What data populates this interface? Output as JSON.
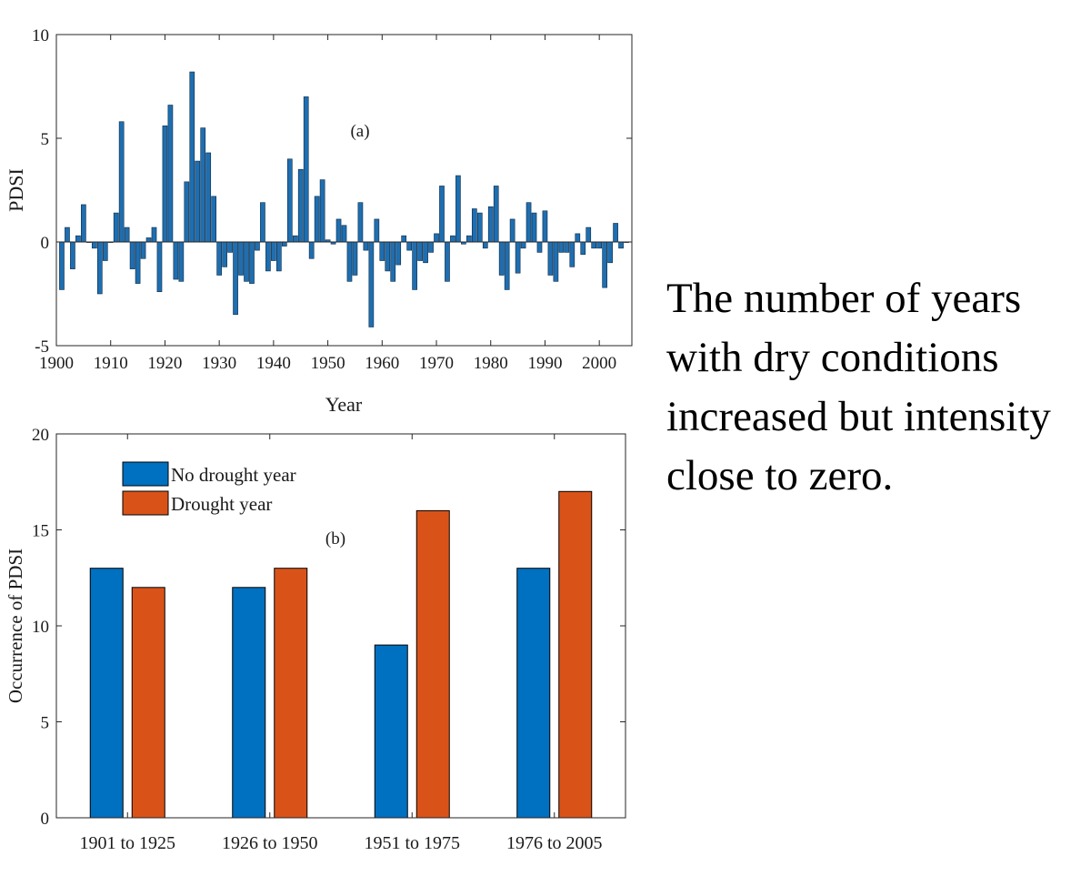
{
  "annotation": "The number of years with dry conditions increased but intensity close to zero.",
  "colors": {
    "pdsi_bar": "#1f6eb0",
    "no_drought": "#0070c0",
    "drought": "#d95319",
    "axis": "#262626"
  },
  "chart_data": [
    {
      "type": "bar",
      "panel_label": "(a)",
      "xlabel": "Year",
      "ylabel": "PDSI",
      "xlim": [
        1900,
        2006
      ],
      "ylim": [
        -5,
        10
      ],
      "xticks": [
        1900,
        1910,
        1920,
        1930,
        1940,
        1950,
        1960,
        1970,
        1980,
        1990,
        2000
      ],
      "yticks": [
        -5,
        0,
        5,
        10
      ],
      "grid": false,
      "x": [
        1901,
        1902,
        1903,
        1904,
        1905,
        1906,
        1907,
        1908,
        1909,
        1910,
        1911,
        1912,
        1913,
        1914,
        1915,
        1916,
        1917,
        1918,
        1919,
        1920,
        1921,
        1922,
        1923,
        1924,
        1925,
        1926,
        1927,
        1928,
        1929,
        1930,
        1931,
        1932,
        1933,
        1934,
        1935,
        1936,
        1937,
        1938,
        1939,
        1940,
        1941,
        1942,
        1943,
        1944,
        1945,
        1946,
        1947,
        1948,
        1949,
        1950,
        1951,
        1952,
        1953,
        1954,
        1955,
        1956,
        1957,
        1958,
        1959,
        1960,
        1961,
        1962,
        1963,
        1964,
        1965,
        1966,
        1967,
        1968,
        1969,
        1970,
        1971,
        1972,
        1973,
        1974,
        1975,
        1976,
        1977,
        1978,
        1979,
        1980,
        1981,
        1982,
        1983,
        1984,
        1985,
        1986,
        1987,
        1988,
        1989,
        1990,
        1991,
        1992,
        1993,
        1994,
        1995,
        1996,
        1997,
        1998,
        1999,
        2000,
        2001,
        2002,
        2003,
        2004,
        2005
      ],
      "values": [
        -2.3,
        0.7,
        -1.3,
        0.3,
        1.8,
        0.0,
        -0.3,
        -2.5,
        -0.9,
        0.0,
        1.4,
        5.8,
        0.7,
        -1.3,
        -2.0,
        -0.8,
        0.2,
        0.7,
        -2.4,
        5.6,
        6.6,
        -1.8,
        -1.9,
        2.9,
        8.2,
        3.9,
        5.5,
        4.3,
        2.2,
        -1.6,
        -1.2,
        -0.5,
        -3.5,
        -1.6,
        -1.9,
        -2.0,
        -0.4,
        1.9,
        -1.4,
        -0.9,
        -1.4,
        -0.2,
        4.0,
        0.3,
        3.5,
        7.0,
        -0.8,
        2.2,
        3.0,
        0.1,
        -0.1,
        1.1,
        0.8,
        -1.9,
        -1.6,
        1.9,
        -0.4,
        -4.1,
        1.1,
        -0.9,
        -1.4,
        -1.9,
        -1.1,
        0.3,
        -0.4,
        -2.3,
        -0.9,
        -1.0,
        -0.5,
        0.4,
        2.7,
        -1.9,
        0.3,
        3.2,
        -0.1,
        0.3,
        1.6,
        1.4,
        -0.3,
        1.7,
        2.7,
        -1.6,
        -2.3,
        1.1,
        -1.5,
        -0.3,
        1.9,
        1.4,
        -0.5,
        1.5,
        -1.6,
        -1.9,
        -0.5,
        -0.5,
        -1.2,
        0.4,
        -0.6,
        0.7,
        -0.3,
        -0.3,
        -2.2,
        -1.0,
        0.9,
        -0.3,
        0.0
      ]
    },
    {
      "type": "bar",
      "panel_label": "(b)",
      "xlabel": "",
      "ylabel": "Occurrence of PDSI",
      "ylim": [
        0,
        20
      ],
      "yticks": [
        0,
        5,
        10,
        15,
        20
      ],
      "grid": false,
      "legend_position": "top-left",
      "categories": [
        "1901 to 1925",
        "1926 to 1950",
        "1951 to 1975",
        "1976 to 2005"
      ],
      "series": [
        {
          "name": "No drought year",
          "values": [
            13,
            12,
            9,
            13
          ]
        },
        {
          "name": "Drought year",
          "values": [
            12,
            13,
            16,
            17
          ]
        }
      ]
    }
  ]
}
